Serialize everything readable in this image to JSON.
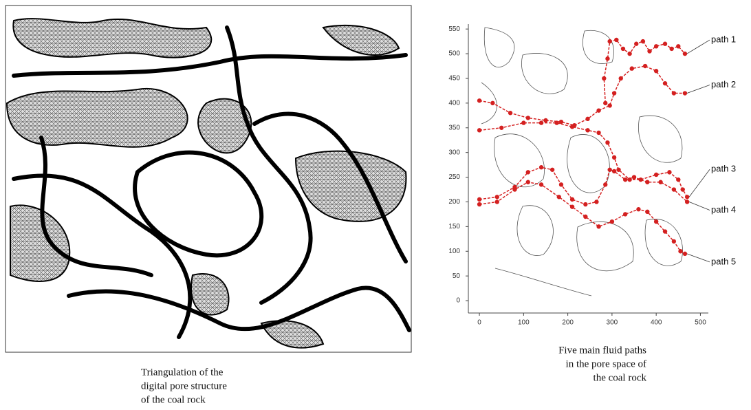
{
  "left_panel": {
    "caption_lines": [
      "Triangulation of the",
      "digital pore structure",
      "of the coal rock"
    ]
  },
  "chart_data": {
    "type": "line",
    "caption_lines": [
      "Five main fluid paths",
      "in the pore space of",
      "the coal rock"
    ],
    "xlim": [
      -25,
      518
    ],
    "ylim": [
      -25,
      560
    ],
    "xticks": [
      0,
      100,
      200,
      300,
      400,
      500
    ],
    "yticks": [
      0,
      50,
      100,
      150,
      200,
      250,
      300,
      350,
      400,
      450,
      500,
      550
    ],
    "series": [
      {
        "name": "path 1",
        "color": "#d42020",
        "x": [
          285,
          282,
          290,
          295,
          310,
          325,
          340,
          355,
          370,
          385,
          400,
          420,
          435,
          450,
          465
        ],
        "y": [
          400,
          450,
          490,
          525,
          528,
          510,
          500,
          520,
          525,
          505,
          515,
          520,
          510,
          515,
          500
        ]
      },
      {
        "name": "path 2",
        "color": "#d42020",
        "x": [
          0,
          30,
          70,
          110,
          150,
          185,
          215,
          245,
          270,
          295,
          305,
          320,
          345,
          375,
          400,
          420,
          440,
          465
        ],
        "y": [
          405,
          400,
          380,
          370,
          365,
          362,
          355,
          368,
          385,
          395,
          420,
          450,
          470,
          475,
          465,
          440,
          420,
          420
        ]
      },
      {
        "name": "path 3",
        "color": "#d42020",
        "x": [
          0,
          50,
          100,
          140,
          175,
          210,
          245,
          270,
          290,
          305,
          315,
          340,
          365,
          400,
          430,
          450,
          460,
          470
        ],
        "y": [
          345,
          350,
          360,
          360,
          360,
          352,
          345,
          340,
          320,
          290,
          265,
          245,
          245,
          255,
          260,
          245,
          225,
          210
        ]
      },
      {
        "name": "path 4",
        "color": "#d42020",
        "x": [
          0,
          40,
          80,
          110,
          140,
          165,
          185,
          210,
          240,
          265,
          285,
          295,
          305,
          330,
          350,
          380,
          410,
          440,
          470
        ],
        "y": [
          205,
          210,
          230,
          260,
          270,
          265,
          235,
          205,
          195,
          200,
          235,
          265,
          262,
          245,
          250,
          240,
          240,
          225,
          200
        ]
      },
      {
        "name": "path 5",
        "color": "#d42020",
        "x": [
          0,
          40,
          80,
          110,
          140,
          180,
          210,
          240,
          270,
          300,
          330,
          360,
          380,
          400,
          420,
          440,
          455,
          465
        ],
        "y": [
          195,
          200,
          225,
          240,
          235,
          210,
          190,
          170,
          150,
          160,
          175,
          185,
          180,
          160,
          140,
          120,
          100,
          95
        ]
      }
    ]
  }
}
